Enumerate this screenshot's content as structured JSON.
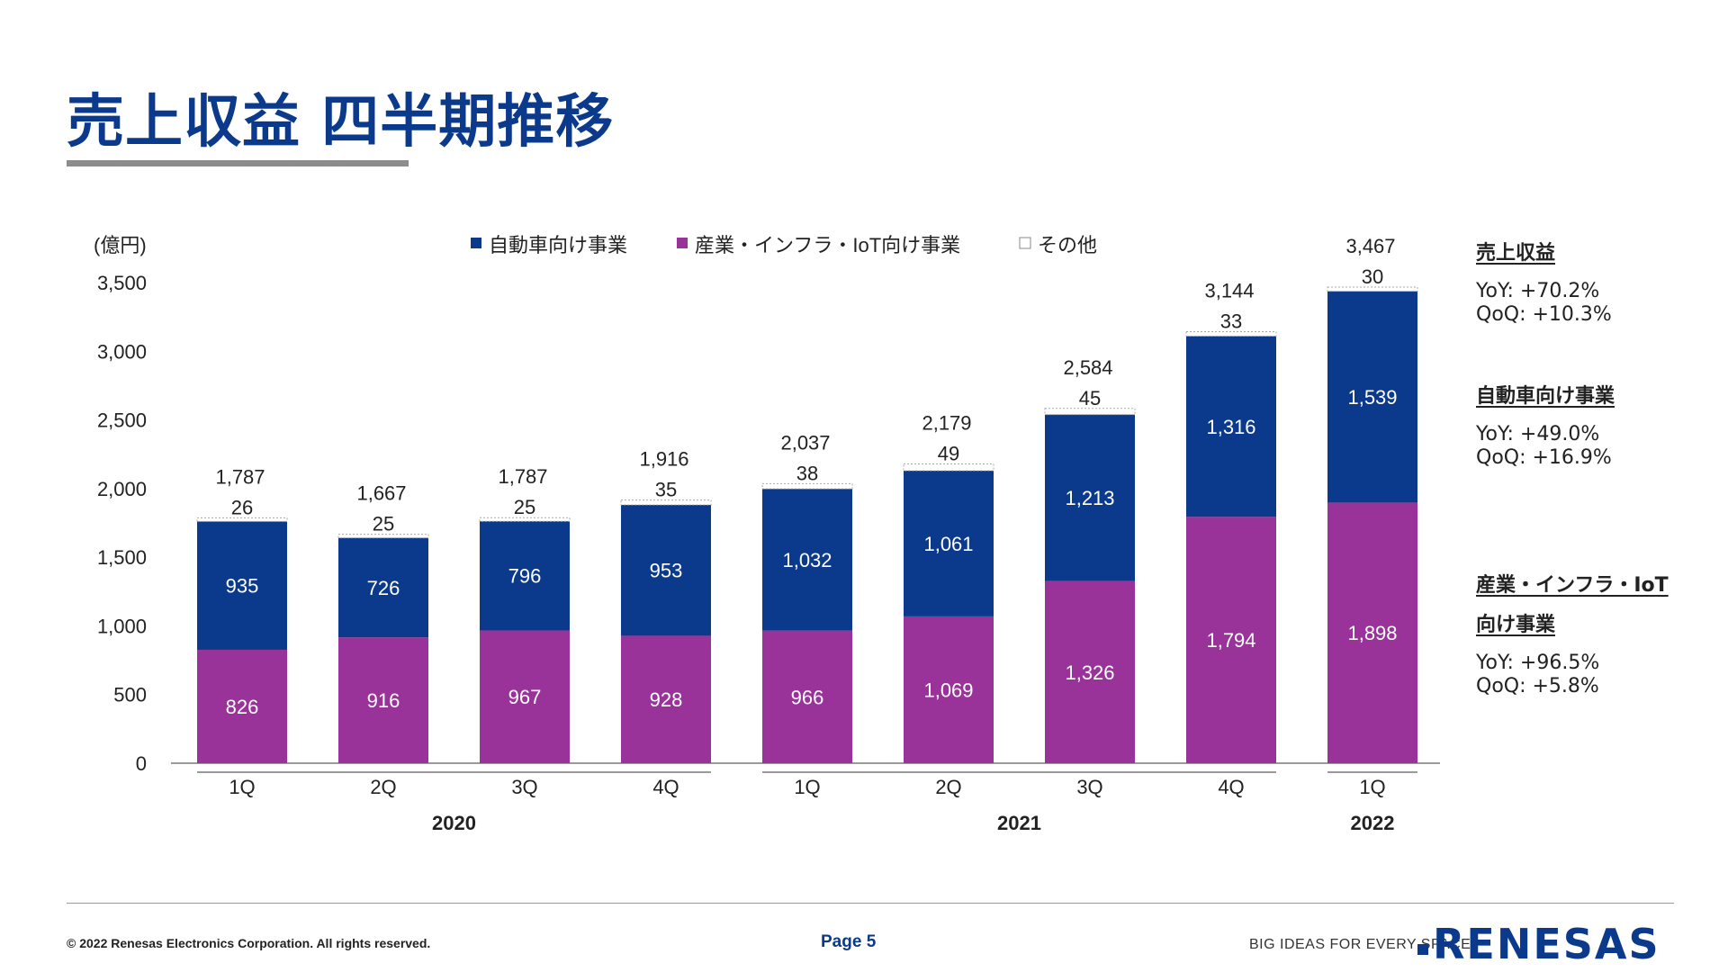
{
  "page": {
    "title": "売上収益 四半期推移",
    "footer": {
      "copyright": "© 2022 Renesas Electronics Corporation. All rights reserved.",
      "page_label": "Page 5",
      "tagline": "BIG IDEAS FOR EVERY SPACE",
      "logo": "RENESAS"
    }
  },
  "colors": {
    "title": "#0b3a8c",
    "automotive": "#0b3a8c",
    "industrial": "#993399",
    "other": "#ffffff",
    "axis": "#9a9a9a"
  },
  "chart_data": {
    "type": "bar",
    "stacked": true,
    "unit_label": "(億円)",
    "legend": [
      "自動車向け事業",
      "産業・インフラ・IoT向け事業",
      "その他"
    ],
    "categories": [
      "1Q",
      "2Q",
      "3Q",
      "4Q",
      "1Q",
      "2Q",
      "3Q",
      "4Q",
      "1Q"
    ],
    "year_groups": [
      {
        "label": "2020",
        "count": 4
      },
      {
        "label": "2021",
        "count": 4
      },
      {
        "label": "2022",
        "count": 1
      }
    ],
    "series": [
      {
        "name": "産業・インフラ・IoT向け事業",
        "values": [
          826,
          916,
          967,
          928,
          966,
          1069,
          1326,
          1794,
          1898
        ]
      },
      {
        "name": "自動車向け事業",
        "values": [
          935,
          726,
          796,
          953,
          1032,
          1061,
          1213,
          1316,
          1539
        ]
      },
      {
        "name": "その他",
        "values": [
          26,
          25,
          25,
          35,
          38,
          49,
          45,
          33,
          30
        ]
      }
    ],
    "totals": [
      1787,
      1667,
      1787,
      1916,
      2037,
      2179,
      2584,
      3144,
      3467
    ],
    "ylim": [
      0,
      3500
    ],
    "yticks": [
      0,
      500,
      1000,
      1500,
      2000,
      2500,
      3000,
      3500
    ]
  },
  "summary": [
    {
      "heading": "売上収益",
      "lines": [
        "YoY: +70.2%",
        "QoQ: +10.3%"
      ]
    },
    {
      "heading": "自動車向け事業",
      "lines": [
        "YoY: +49.0%",
        "QoQ: +16.9%"
      ]
    },
    {
      "heading": "産業・インフラ・IoT",
      "heading2": "向け事業",
      "lines": [
        "YoY: +96.5%",
        "QoQ: +5.8%"
      ]
    }
  ]
}
